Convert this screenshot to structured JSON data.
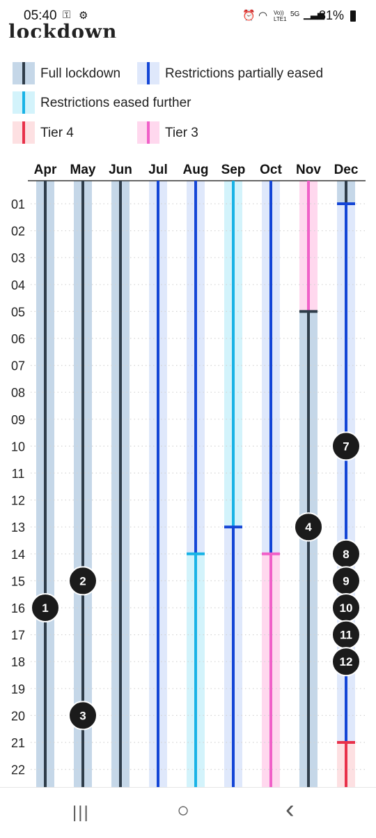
{
  "status_bar": {
    "time": "05:40",
    "battery": "81%",
    "icons": [
      "key-icon",
      "gear-icon",
      "alarm-icon",
      "wifi-icon",
      "volte-icon",
      "5g-icon",
      "signal-icon",
      "battery-icon"
    ],
    "volte": "Vo)) LTE1",
    "network": "5G"
  },
  "title": "lockdown",
  "legend": [
    {
      "label": "Full lockdown",
      "fill": "#c5d7e8",
      "line": "#2f3d4a"
    },
    {
      "label": "Restrictions partially eased",
      "fill": "#dfe8fb",
      "line": "#1446d6"
    },
    {
      "label": "Restrictions eased further",
      "fill": "#d3f3fb",
      "line": "#19b3e6"
    },
    {
      "label": "Tier 4",
      "fill": "#fde0e2",
      "line": "#e8314a"
    },
    {
      "label": "Tier 3",
      "fill": "#ffd8ee",
      "line": "#f060c8"
    }
  ],
  "chart_data": {
    "type": "timeline",
    "months": [
      "Apr",
      "May",
      "Jun",
      "Jul",
      "Aug",
      "Sep",
      "Oct",
      "Nov",
      "Dec"
    ],
    "days": [
      "01",
      "02",
      "03",
      "04",
      "05",
      "06",
      "07",
      "08",
      "09",
      "10",
      "11",
      "12",
      "13",
      "14",
      "15",
      "16",
      "17",
      "18",
      "19",
      "20",
      "21",
      "22"
    ],
    "status_colors": {
      "full": {
        "fill": "#c5d7e8",
        "line": "#2f3d4a"
      },
      "partial": {
        "fill": "#dfe8fb",
        "line": "#1446d6"
      },
      "further": {
        "fill": "#d3f3fb",
        "line": "#19b3e6"
      },
      "tier4": {
        "fill": "#fde0e2",
        "line": "#e8314a"
      },
      "tier3": {
        "fill": "#ffd8ee",
        "line": "#f060c8"
      }
    },
    "segments": [
      {
        "month": "Apr",
        "from": "start",
        "to": "end",
        "status": "full"
      },
      {
        "month": "May",
        "from": "start",
        "to": "end",
        "status": "full"
      },
      {
        "month": "Jun",
        "from": "start",
        "to": "end",
        "status": "full"
      },
      {
        "month": "Jul",
        "from": "start",
        "to": "end",
        "status": "partial"
      },
      {
        "month": "Aug",
        "from": "start",
        "to": 14,
        "status": "partial"
      },
      {
        "month": "Aug",
        "from": 14,
        "to": "end",
        "status": "further"
      },
      {
        "month": "Sep",
        "from": "start",
        "to": 13,
        "status": "further"
      },
      {
        "month": "Sep",
        "from": 13,
        "to": "end",
        "status": "partial"
      },
      {
        "month": "Oct",
        "from": "start",
        "to": 14,
        "status": "partial"
      },
      {
        "month": "Oct",
        "from": 14,
        "to": "end",
        "status": "tier3"
      },
      {
        "month": "Nov",
        "from": "start",
        "to": 5,
        "status": "tier3"
      },
      {
        "month": "Nov",
        "from": 5,
        "to": "end",
        "status": "full"
      },
      {
        "month": "Dec",
        "from": "start",
        "to": 1,
        "status": "full"
      },
      {
        "month": "Dec",
        "from": 1,
        "to": 21,
        "status": "partial"
      },
      {
        "month": "Dec",
        "from": 21,
        "to": "end",
        "status": "tier4"
      }
    ],
    "change_markers": [
      {
        "month": "Aug",
        "day": 14,
        "status": "further"
      },
      {
        "month": "Sep",
        "day": 13,
        "status": "partial"
      },
      {
        "month": "Oct",
        "day": 14,
        "status": "tier3"
      },
      {
        "month": "Nov",
        "day": 5,
        "status": "full"
      },
      {
        "month": "Dec",
        "day": 1,
        "status": "partial"
      },
      {
        "month": "Dec",
        "day": 21,
        "status": "tier4"
      }
    ],
    "annotations": [
      {
        "label": "1",
        "month": "Apr",
        "day": 16
      },
      {
        "label": "2",
        "month": "May",
        "day": 15
      },
      {
        "label": "3",
        "month": "May",
        "day": 20
      },
      {
        "label": "4",
        "month": "Nov",
        "day": 13
      },
      {
        "label": "7",
        "month": "Dec",
        "day": 10
      },
      {
        "label": "8",
        "month": "Dec",
        "day": 14
      },
      {
        "label": "9",
        "month": "Dec",
        "day": 15
      },
      {
        "label": "10",
        "month": "Dec",
        "day": 16
      },
      {
        "label": "11",
        "month": "Dec",
        "day": 17
      },
      {
        "label": "12",
        "month": "Dec",
        "day": 18
      }
    ],
    "grid": true
  },
  "nav_bar": {
    "recents": "|||",
    "home": "○",
    "back": "‹"
  }
}
